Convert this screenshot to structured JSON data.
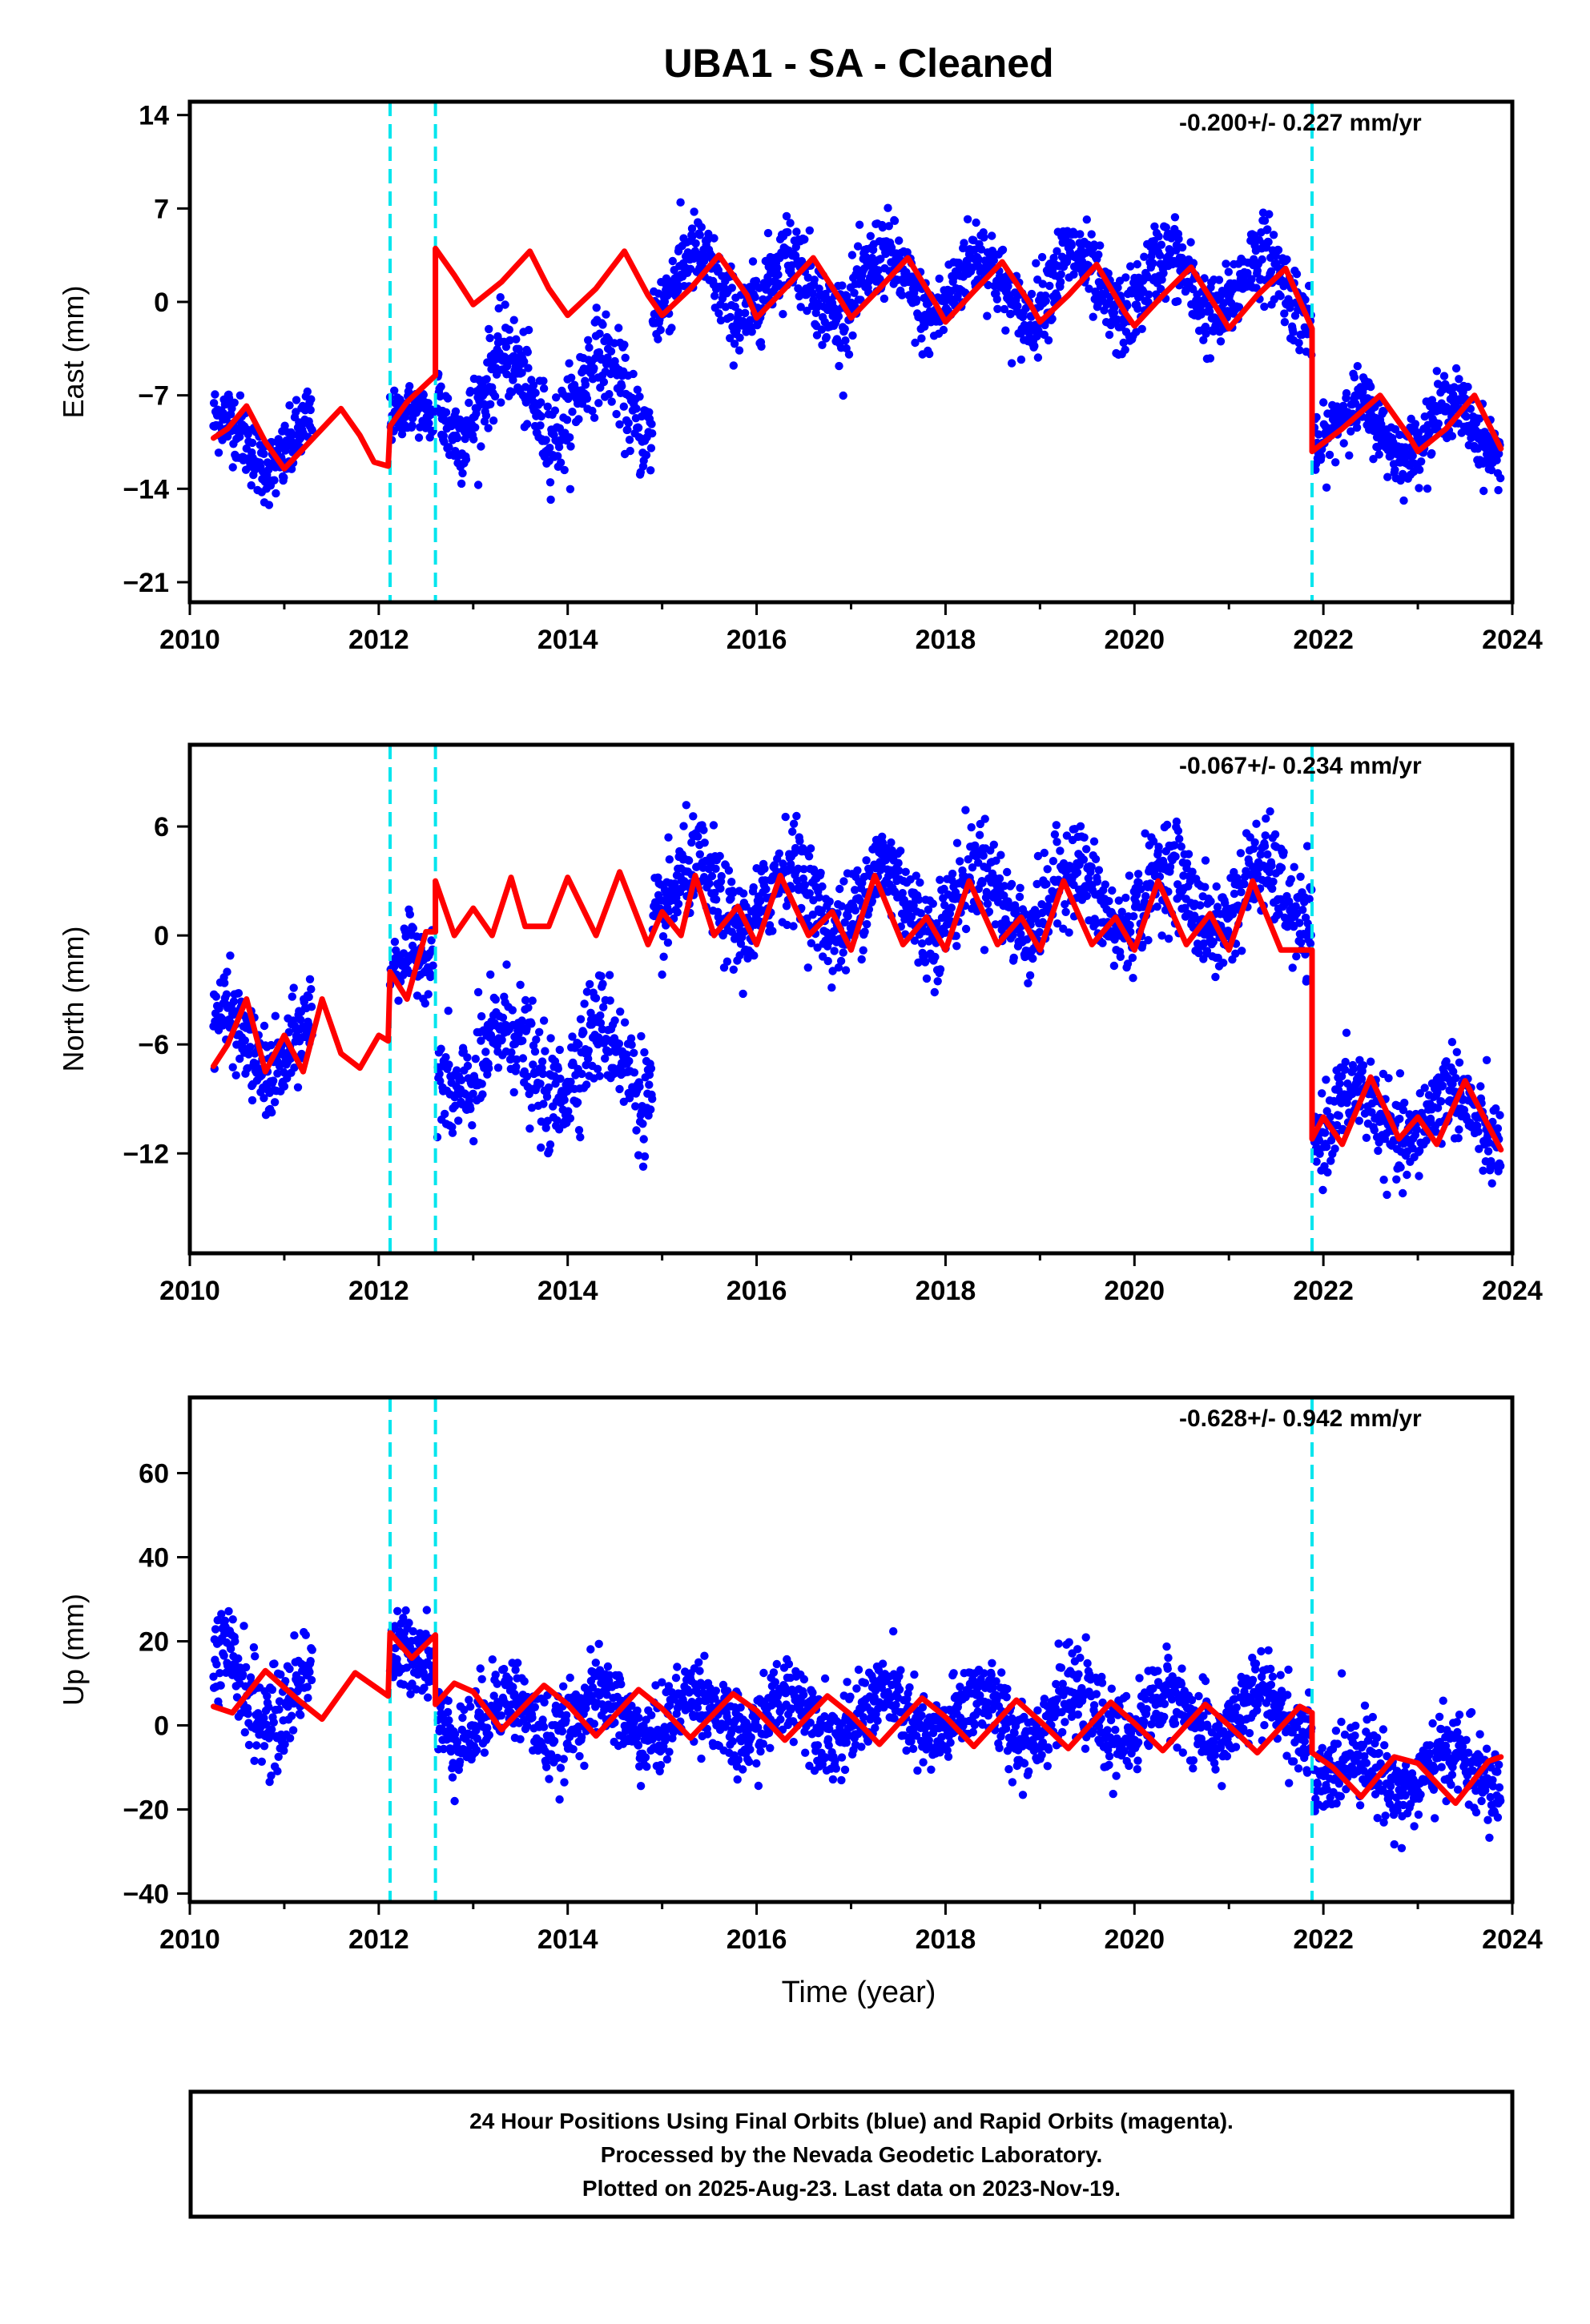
{
  "title": "UBA1  - SA - Cleaned",
  "xlabel": "Time (year)",
  "footer": {
    "line1": "24 Hour Positions Using Final Orbits (blue) and Rapid Orbits (magenta).",
    "line2": "Processed by the Nevada Geodetic Laboratory.",
    "line3": "Plotted on 2025-Aug-23. Last data on 2023-Nov-19."
  },
  "colors": {
    "data": "#0000ff",
    "model": "#ff0000",
    "steps": "#00e5ee",
    "frame": "#000000"
  },
  "chart_data": [
    {
      "type": "scatter",
      "component": "East",
      "ylabel": "East (mm)",
      "rate_text": "-0.200+/- 0.227 mm/yr",
      "xlim": [
        2010,
        2024
      ],
      "ylim": [
        -22.5,
        15
      ],
      "xticks": [
        "2010",
        "2012",
        "2014",
        "2016",
        "2018",
        "2020",
        "2022",
        "2024"
      ],
      "yticks": [
        "14",
        "7",
        "0",
        "-7",
        "-14",
        "-21"
      ],
      "steps_x": [
        2012.12,
        2012.6,
        2021.88
      ],
      "data_range": [
        2010.25,
        2023.88
      ],
      "model": {
        "x": [
          2010.25,
          2010.4,
          2010.6,
          2010.8,
          2011.0,
          2011.2,
          2011.4,
          2011.6,
          2011.8,
          2011.95,
          2012.1,
          2012.12,
          2012.3,
          2012.6,
          2012.6,
          2012.8,
          2013.0,
          2013.3,
          2013.6,
          2013.8,
          2014.0,
          2014.3,
          2014.6,
          2014.85,
          2015.0,
          2015.3,
          2015.6,
          2015.9,
          2016.0,
          2016.3,
          2016.6,
          2016.9,
          2017.0,
          2017.3,
          2017.6,
          2017.9,
          2018.0,
          2018.3,
          2018.6,
          2018.9,
          2019.0,
          2019.3,
          2019.6,
          2019.9,
          2020.0,
          2020.3,
          2020.6,
          2020.9,
          2021.0,
          2021.3,
          2021.6,
          2021.88,
          2021.88,
          2022.2,
          2022.6,
          2022.9,
          2023.0,
          2023.3,
          2023.6,
          2023.88
        ],
        "y": [
          -10.2,
          -9.5,
          -7.8,
          -10.5,
          -12.5,
          -11.0,
          -9.5,
          -8.0,
          -10.0,
          -12.0,
          -12.3,
          -9.3,
          -7.5,
          -5.5,
          4.0,
          2.0,
          -0.2,
          1.5,
          3.8,
          1.0,
          -1.0,
          1.0,
          3.8,
          0.5,
          -1.0,
          1.0,
          3.5,
          0.5,
          -1.2,
          1.0,
          3.3,
          0.0,
          -1.2,
          1.0,
          3.3,
          -0.2,
          -1.5,
          0.8,
          3.0,
          -0.2,
          -1.5,
          0.5,
          2.8,
          -0.8,
          -1.8,
          0.5,
          2.6,
          -0.8,
          -2.0,
          0.5,
          2.5,
          -2.0,
          -11.2,
          -9.5,
          -7.0,
          -10.0,
          -11.2,
          -9.5,
          -7.0,
          -11.0
        ]
      },
      "scatter_segments": [
        {
          "x": [
            2010.25,
            2011.3
          ],
          "mean": -10.5,
          "amp": 2.0,
          "spread": 2.2
        },
        {
          "x": [
            2012.12,
            2012.58
          ],
          "mean": -9.0,
          "amp": 1.0,
          "spread": 1.5
        },
        {
          "x": [
            2012.62,
            2014.9
          ],
          "mean": -7.0,
          "amp": 3.0,
          "spread": 2.8
        },
        {
          "x": [
            2014.9,
            2021.88
          ],
          "mean": 1.2,
          "amp": 2.4,
          "spread": 2.5
        },
        {
          "x": [
            2021.9,
            2023.88
          ],
          "mean": -9.5,
          "amp": 2.0,
          "spread": 2.0
        }
      ]
    },
    {
      "type": "scatter",
      "component": "North",
      "ylabel": "North (mm)",
      "rate_text": "-0.067+/- 0.234 mm/yr",
      "xlim": [
        2010,
        2024
      ],
      "ylim": [
        -17.5,
        10.5
      ],
      "xticks": [
        "2010",
        "2012",
        "2014",
        "2016",
        "2018",
        "2020",
        "2022",
        "2024"
      ],
      "yticks": [
        "6",
        "0",
        "-6",
        "-12"
      ],
      "steps_x": [
        2012.12,
        2012.6,
        2021.88
      ],
      "data_range": [
        2010.25,
        2023.88
      ],
      "model": {
        "x": [
          2010.25,
          2010.4,
          2010.6,
          2010.8,
          2011.0,
          2011.2,
          2011.4,
          2011.6,
          2011.8,
          2012.0,
          2012.1,
          2012.12,
          2012.3,
          2012.5,
          2012.6,
          2012.6,
          2012.8,
          2013.0,
          2013.2,
          2013.4,
          2013.55,
          2013.8,
          2014.0,
          2014.3,
          2014.55,
          2014.85,
          2015.0,
          2015.2,
          2015.35,
          2015.55,
          2015.8,
          2016.0,
          2016.25,
          2016.55,
          2016.8,
          2017.0,
          2017.25,
          2017.55,
          2017.8,
          2018.0,
          2018.25,
          2018.55,
          2018.8,
          2019.0,
          2019.25,
          2019.55,
          2019.8,
          2020.0,
          2020.25,
          2020.55,
          2020.8,
          2021.0,
          2021.25,
          2021.55,
          2021.88,
          2021.88,
          2022.0,
          2022.2,
          2022.5,
          2022.8,
          2023.0,
          2023.2,
          2023.5,
          2023.88
        ],
        "y": [
          -7.2,
          -6.0,
          -3.5,
          -7.5,
          -5.5,
          -7.5,
          -3.5,
          -6.5,
          -7.3,
          -5.5,
          -5.8,
          -2.0,
          -3.5,
          0.2,
          0.2,
          3.0,
          0.0,
          1.5,
          0.0,
          3.2,
          0.5,
          0.5,
          3.2,
          0.0,
          3.5,
          -0.5,
          1.3,
          0.0,
          3.3,
          0.0,
          1.6,
          -0.5,
          3.3,
          0.0,
          1.3,
          -0.8,
          3.3,
          -0.5,
          1.0,
          -0.8,
          3.0,
          -0.5,
          1.0,
          -0.8,
          3.0,
          -0.5,
          1.0,
          -0.8,
          3.0,
          -0.5,
          1.2,
          -0.8,
          3.0,
          -0.8,
          -0.8,
          -11.2,
          -10.0,
          -11.5,
          -7.8,
          -11.2,
          -10.0,
          -11.5,
          -8.0,
          -11.8
        ]
      },
      "scatter_segments": [
        {
          "x": [
            2010.25,
            2011.3
          ],
          "mean": -6.0,
          "amp": 1.8,
          "spread": 2.0
        },
        {
          "x": [
            2012.12,
            2012.58
          ],
          "mean": -2.0,
          "amp": 1.0,
          "spread": 1.5
        },
        {
          "x": [
            2012.62,
            2014.9
          ],
          "mean": -7.0,
          "amp": 2.0,
          "spread": 2.5
        },
        {
          "x": [
            2014.9,
            2021.88
          ],
          "mean": 2.0,
          "amp": 1.8,
          "spread": 2.2
        },
        {
          "x": [
            2021.9,
            2023.88
          ],
          "mean": -10.0,
          "amp": 1.6,
          "spread": 2.0
        }
      ]
    },
    {
      "type": "scatter",
      "component": "Up",
      "ylabel": "Up (mm)",
      "rate_text": "-0.628+/- 0.942 mm/yr",
      "xlim": [
        2010,
        2024
      ],
      "ylim": [
        -42,
        78
      ],
      "xticks": [
        "2010",
        "2012",
        "2014",
        "2016",
        "2018",
        "2020",
        "2022",
        "2024"
      ],
      "yticks": [
        "60",
        "40",
        "20",
        "0",
        "-20",
        "-40"
      ],
      "steps_x": [
        2012.12,
        2012.6,
        2021.88
      ],
      "data_range": [
        2010.25,
        2023.88
      ],
      "model": {
        "x": [
          2010.25,
          2010.45,
          2010.8,
          2011.15,
          2011.4,
          2011.75,
          2012.1,
          2012.12,
          2012.35,
          2012.6,
          2012.6,
          2012.8,
          2013.0,
          2013.3,
          2013.75,
          2014.0,
          2014.3,
          2014.75,
          2015.0,
          2015.3,
          2015.75,
          2016.0,
          2016.3,
          2016.75,
          2017.0,
          2017.3,
          2017.75,
          2018.0,
          2018.3,
          2018.75,
          2019.0,
          2019.3,
          2019.75,
          2020.0,
          2020.3,
          2020.75,
          2021.0,
          2021.3,
          2021.75,
          2021.88,
          2021.88,
          2022.1,
          2022.4,
          2022.75,
          2023.0,
          2023.4,
          2023.75,
          2023.88
        ],
        "y": [
          4.5,
          3.0,
          13.0,
          6.0,
          1.5,
          12.5,
          7.0,
          22.0,
          16.0,
          21.5,
          5.0,
          10.0,
          8.0,
          -1.0,
          9.5,
          5.0,
          -2.5,
          8.5,
          4.0,
          -3.0,
          7.5,
          3.5,
          -3.5,
          7.0,
          2.5,
          -4.5,
          6.5,
          2.0,
          -5.0,
          6.0,
          1.0,
          -5.5,
          5.5,
          0.5,
          -6.0,
          5.0,
          0.0,
          -6.5,
          4.5,
          3.0,
          -6.5,
          -10.0,
          -17.0,
          -7.5,
          -9.0,
          -18.5,
          -8.5,
          -7.5
        ]
      },
      "scatter_segments": [
        {
          "x": [
            2010.25,
            2011.3
          ],
          "mean": 8.0,
          "amp": 8.0,
          "spread": 10.0
        },
        {
          "x": [
            2012.12,
            2012.58
          ],
          "mean": 15.0,
          "amp": 3.0,
          "spread": 8.0
        },
        {
          "x": [
            2012.62,
            2021.88
          ],
          "mean": 2.0,
          "amp": 5.5,
          "spread": 8.0
        },
        {
          "x": [
            2021.9,
            2023.88
          ],
          "mean": -11.0,
          "amp": 5.0,
          "spread": 8.0
        }
      ]
    }
  ]
}
